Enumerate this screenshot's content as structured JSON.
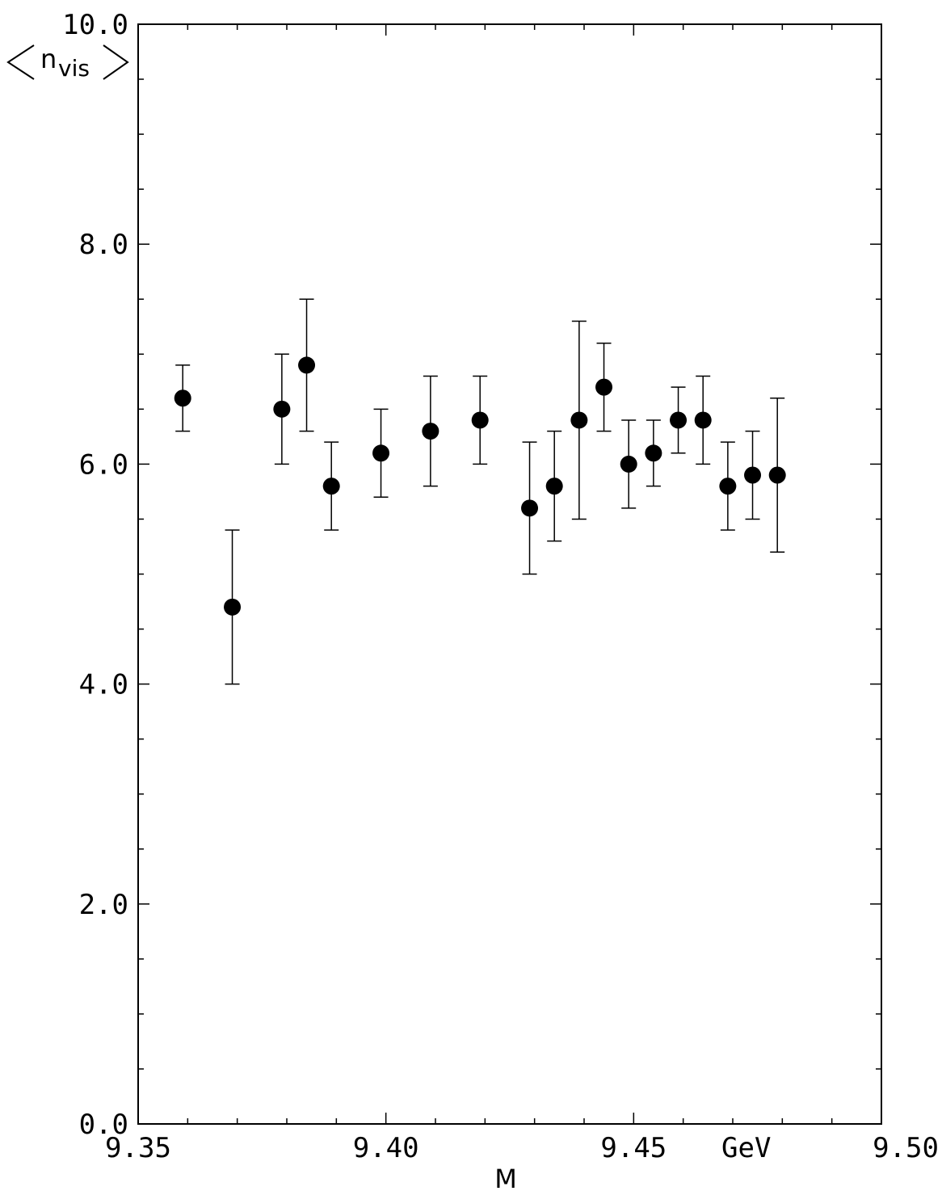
{
  "chart_data": {
    "type": "scatter",
    "title": "",
    "xlabel": "M",
    "x_unit": "GeV",
    "ylabel_main": "n",
    "ylabel_sub": "vis",
    "xlim": [
      9.35,
      9.5
    ],
    "ylim": [
      0.0,
      10.0
    ],
    "x_ticks": [
      {
        "value": 9.35,
        "label": "9.35"
      },
      {
        "value": 9.4,
        "label": "9.40"
      },
      {
        "value": 9.45,
        "label": "9.45"
      },
      {
        "value": 9.5,
        "label": "9.50"
      }
    ],
    "y_ticks": [
      {
        "value": 0.0,
        "label": "0.0"
      },
      {
        "value": 2.0,
        "label": "2.0"
      },
      {
        "value": 4.0,
        "label": "4.0"
      },
      {
        "value": 6.0,
        "label": "6.0"
      },
      {
        "value": 8.0,
        "label": "8.0"
      },
      {
        "value": 10.0,
        "label": "10.0"
      }
    ],
    "grid": false,
    "points": [
      {
        "x": 9.359,
        "y": 6.6,
        "lo": 6.3,
        "hi": 6.9
      },
      {
        "x": 9.369,
        "y": 4.7,
        "lo": 4.0,
        "hi": 5.4
      },
      {
        "x": 9.379,
        "y": 6.5,
        "lo": 6.0,
        "hi": 7.0
      },
      {
        "x": 9.384,
        "y": 6.9,
        "lo": 6.3,
        "hi": 7.5
      },
      {
        "x": 9.389,
        "y": 5.8,
        "lo": 5.4,
        "hi": 6.2
      },
      {
        "x": 9.399,
        "y": 6.1,
        "lo": 5.7,
        "hi": 6.5
      },
      {
        "x": 9.409,
        "y": 6.3,
        "lo": 5.8,
        "hi": 6.8
      },
      {
        "x": 9.419,
        "y": 6.4,
        "lo": 6.0,
        "hi": 6.8
      },
      {
        "x": 9.429,
        "y": 5.6,
        "lo": 5.0,
        "hi": 6.2
      },
      {
        "x": 9.434,
        "y": 5.8,
        "lo": 5.3,
        "hi": 6.3
      },
      {
        "x": 9.439,
        "y": 6.4,
        "lo": 5.5,
        "hi": 7.3
      },
      {
        "x": 9.444,
        "y": 6.7,
        "lo": 6.3,
        "hi": 7.1
      },
      {
        "x": 9.449,
        "y": 6.0,
        "lo": 5.6,
        "hi": 6.4
      },
      {
        "x": 9.454,
        "y": 6.1,
        "lo": 5.8,
        "hi": 6.4
      },
      {
        "x": 9.459,
        "y": 6.4,
        "lo": 6.1,
        "hi": 6.7
      },
      {
        "x": 9.464,
        "y": 6.4,
        "lo": 6.0,
        "hi": 6.8
      },
      {
        "x": 9.469,
        "y": 5.8,
        "lo": 5.4,
        "hi": 6.2
      },
      {
        "x": 9.474,
        "y": 5.9,
        "lo": 5.5,
        "hi": 6.3
      },
      {
        "x": 9.479,
        "y": 5.9,
        "lo": 5.2,
        "hi": 6.6
      }
    ],
    "colors": {
      "marker": "#000000",
      "axis": "#000000",
      "background": "#ffffff"
    }
  }
}
